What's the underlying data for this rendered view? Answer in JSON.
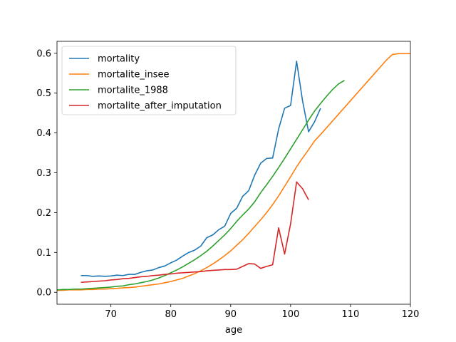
{
  "chart_data": {
    "type": "line",
    "xlabel": "age",
    "ylabel": "",
    "xlim": [
      61,
      120
    ],
    "ylim": [
      -0.03,
      0.63
    ],
    "xticks": [
      70,
      80,
      90,
      100,
      110,
      120
    ],
    "yticks": [
      0.0,
      0.1,
      0.2,
      0.3,
      0.4,
      0.5,
      0.6
    ],
    "xtick_labels": [
      "70",
      "80",
      "90",
      "100",
      "110",
      "120"
    ],
    "ytick_labels": [
      "0.0",
      "0.1",
      "0.2",
      "0.3",
      "0.4",
      "0.5",
      "0.6"
    ],
    "grid": false,
    "legend_position": "top-left",
    "series": [
      {
        "name": "mortality",
        "color": "#1f77b4",
        "x": [
          65,
          66,
          67,
          68,
          69,
          70,
          71,
          72,
          73,
          74,
          75,
          76,
          77,
          78,
          79,
          80,
          81,
          82,
          83,
          84,
          85,
          86,
          87,
          88,
          89,
          90,
          91,
          92,
          93,
          94,
          95,
          96,
          97,
          98,
          99,
          100,
          101,
          102,
          103,
          104,
          105
        ],
        "y": [
          0.042,
          0.042,
          0.04,
          0.041,
          0.04,
          0.041,
          0.043,
          0.042,
          0.045,
          0.045,
          0.05,
          0.054,
          0.056,
          0.062,
          0.066,
          0.074,
          0.081,
          0.091,
          0.1,
          0.106,
          0.116,
          0.137,
          0.144,
          0.157,
          0.166,
          0.198,
          0.211,
          0.241,
          0.255,
          0.294,
          0.324,
          0.336,
          0.337,
          0.41,
          0.462,
          0.469,
          0.58,
          0.48,
          0.403,
          0.428,
          0.462
        ]
      },
      {
        "name": "mortalite_insee",
        "color": "#ff7f0e",
        "x": [
          61,
          62,
          63,
          64,
          65,
          66,
          67,
          68,
          69,
          70,
          71,
          72,
          73,
          74,
          75,
          76,
          77,
          78,
          79,
          80,
          81,
          82,
          83,
          84,
          85,
          86,
          87,
          88,
          89,
          90,
          91,
          92,
          93,
          94,
          95,
          96,
          97,
          98,
          99,
          100,
          101,
          102,
          103,
          104,
          105,
          106,
          107,
          108,
          109,
          110,
          111,
          112,
          113,
          114,
          115,
          116,
          117,
          118,
          119,
          120
        ],
        "y": [
          0.005,
          0.005,
          0.006,
          0.006,
          0.006,
          0.007,
          0.007,
          0.008,
          0.008,
          0.009,
          0.01,
          0.011,
          0.012,
          0.013,
          0.015,
          0.017,
          0.019,
          0.021,
          0.024,
          0.027,
          0.031,
          0.035,
          0.041,
          0.047,
          0.054,
          0.062,
          0.071,
          0.081,
          0.092,
          0.104,
          0.118,
          0.132,
          0.148,
          0.165,
          0.182,
          0.2,
          0.22,
          0.242,
          0.266,
          0.29,
          0.315,
          0.337,
          0.358,
          0.38,
          0.396,
          0.413,
          0.43,
          0.447,
          0.464,
          0.481,
          0.498,
          0.515,
          0.532,
          0.549,
          0.566,
          0.583,
          0.597,
          0.599,
          0.599,
          0.599
        ]
      },
      {
        "name": "mortalite_1988",
        "color": "#2ca02c",
        "x": [
          61,
          62,
          63,
          64,
          65,
          66,
          67,
          68,
          69,
          70,
          71,
          72,
          73,
          74,
          75,
          76,
          77,
          78,
          79,
          80,
          81,
          82,
          83,
          84,
          85,
          86,
          87,
          88,
          89,
          90,
          91,
          92,
          93,
          94,
          95,
          96,
          97,
          98,
          99,
          100,
          101,
          102,
          103,
          104,
          105,
          106,
          107,
          108,
          109
        ],
        "y": [
          0.006,
          0.007,
          0.007,
          0.008,
          0.008,
          0.009,
          0.01,
          0.011,
          0.012,
          0.013,
          0.015,
          0.016,
          0.019,
          0.021,
          0.024,
          0.027,
          0.031,
          0.036,
          0.042,
          0.049,
          0.056,
          0.064,
          0.073,
          0.082,
          0.092,
          0.103,
          0.116,
          0.13,
          0.144,
          0.16,
          0.178,
          0.194,
          0.209,
          0.227,
          0.25,
          0.27,
          0.291,
          0.313,
          0.336,
          0.36,
          0.384,
          0.408,
          0.432,
          0.455,
          0.474,
          0.492,
          0.509,
          0.523,
          0.532
        ]
      },
      {
        "name": "mortalite_after_imputation",
        "color": "#d62728",
        "x": [
          65,
          66,
          67,
          68,
          69,
          70,
          71,
          72,
          73,
          74,
          75,
          76,
          77,
          78,
          79,
          80,
          81,
          82,
          83,
          84,
          85,
          86,
          87,
          88,
          89,
          90,
          91,
          92,
          93,
          94,
          95,
          96,
          97,
          98,
          99,
          100,
          101,
          102,
          103
        ],
        "y": [
          0.025,
          0.026,
          0.027,
          0.028,
          0.029,
          0.031,
          0.032,
          0.034,
          0.035,
          0.037,
          0.039,
          0.04,
          0.042,
          0.043,
          0.045,
          0.046,
          0.048,
          0.049,
          0.05,
          0.051,
          0.052,
          0.054,
          0.055,
          0.056,
          0.057,
          0.057,
          0.058,
          0.065,
          0.072,
          0.071,
          0.06,
          0.065,
          0.069,
          0.162,
          0.096,
          0.172,
          0.277,
          0.26,
          0.232
        ]
      }
    ]
  }
}
